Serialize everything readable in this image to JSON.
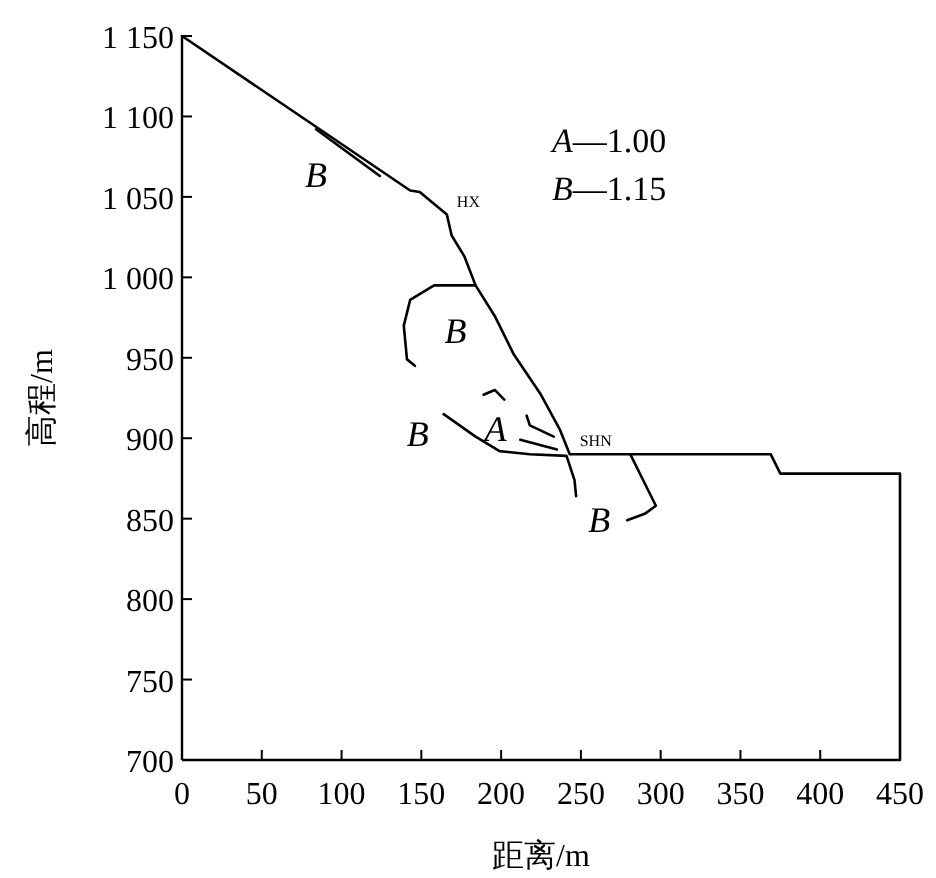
{
  "chart_data": {
    "type": "line",
    "xlabel": "距离/m",
    "ylabel": "高程/m",
    "xlim": [
      0,
      450
    ],
    "ylim": [
      700,
      1150
    ],
    "xticks": [
      0,
      50,
      100,
      150,
      200,
      250,
      300,
      350,
      400,
      450
    ],
    "yticks": [
      700,
      750,
      800,
      850,
      900,
      950,
      {
        "value": 1000,
        "label": "1 000"
      },
      {
        "value": 1050,
        "label": "1 050"
      },
      {
        "value": 1100,
        "label": "1 100"
      },
      {
        "value": 1150,
        "label": "1 150"
      }
    ],
    "grid": false,
    "marker": "none",
    "line_style": "solid",
    "series": [
      {
        "color": "#000000",
        "x": [
          0,
          143,
          149,
          166,
          169,
          177,
          184,
          196,
          208,
          225,
          237,
          243,
          369,
          375,
          450,
          450
        ],
        "values": [
          1150,
          1054,
          1053,
          1039,
          1026,
          1013,
          995,
          976,
          952,
          927,
          905,
          890,
          890,
          878,
          878,
          700
        ]
      },
      {
        "name": "B",
        "color": "#000000",
        "x": [
          84,
          124
        ],
        "values": [
          1092,
          1063
        ]
      },
      {
        "name": "B",
        "color": "#000000",
        "x": [
          184,
          158,
          143,
          139,
          141,
          146
        ],
        "values": [
          995,
          995,
          986,
          970,
          949,
          945
        ]
      },
      {
        "name": "B",
        "color": "#000000",
        "x": [
          164,
          184,
          199,
          218,
          241,
          246,
          247
        ],
        "values": [
          915,
          901,
          892,
          890,
          889,
          874,
          864
        ]
      },
      {
        "name": "B",
        "color": "#000000",
        "x": [
          281,
          291,
          297,
          290,
          279
        ],
        "values": [
          890,
          870,
          858,
          853,
          849
        ]
      },
      {
        "name": "A",
        "color": "#000000",
        "x": [
          189,
          196,
          202
        ],
        "values": [
          927,
          930,
          924
        ]
      },
      {
        "color": "#000000",
        "x": [
          216,
          218,
          233
        ],
        "values": [
          914,
          908,
          901
        ]
      },
      {
        "color": "#000000",
        "x": [
          212,
          235
        ],
        "values": [
          899,
          893
        ]
      }
    ],
    "annotations": [
      "A—1.00",
      "B—1.15",
      {
        "text": "HX",
        "x": 166,
        "y": 1039
      },
      {
        "text": "SHN",
        "x": 243,
        "y": 890
      }
    ]
  }
}
